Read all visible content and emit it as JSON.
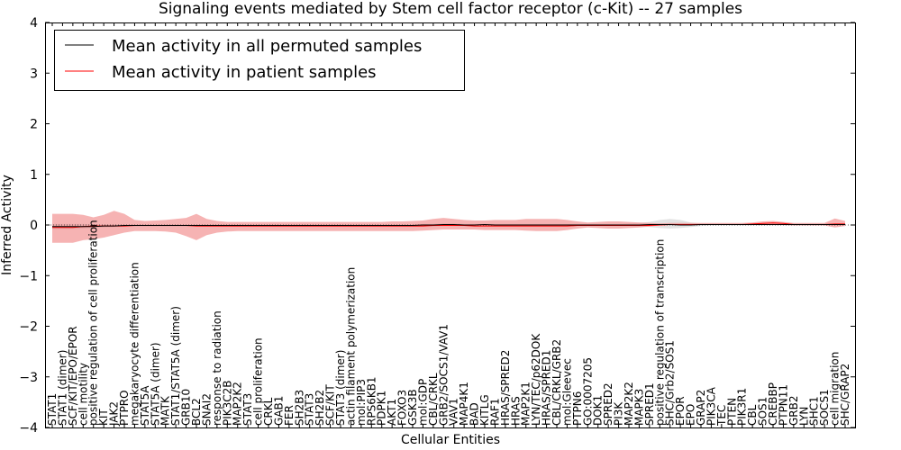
{
  "chart_data": {
    "type": "area",
    "title": "Signaling events mediated by Stem cell factor receptor (c-Kit) -- 27 samples",
    "xlabel": "Cellular Entities",
    "ylabel": "Inferred Activity",
    "ylim": [
      -4,
      4
    ],
    "yticks": [
      -4,
      -3,
      -2,
      -1,
      0,
      1,
      2,
      3,
      4
    ],
    "ytick_labels": [
      "−4",
      "−3",
      "−2",
      "−1",
      "0",
      "1",
      "2",
      "3",
      "4"
    ],
    "grid": false,
    "legend_position": "top-left",
    "categories": [
      "STAT1",
      "STAT1 (dimer)",
      "SCF/KIT/EPO/EPOR",
      "cell motility",
      "positive regulation of cell proliferation",
      "KIT",
      "JAK2",
      "PTPRO",
      "megakaryocyte differentiation",
      "STAT5A",
      "STAT5A (dimer)",
      "MATK",
      "STAT1/STAT5A (dimer)",
      "GRB10",
      "BCL2",
      "SNAI2",
      "response to radiation",
      "PIK3C2B",
      "MAP2K2",
      "STAT3",
      "cell proliferation",
      "CRKL",
      "GAB1",
      "FER",
      "SH2B3",
      "STAT3",
      "SH2B2",
      "SCF/KIT",
      "STAT3 (dimer)",
      "actin filament polymerization",
      "mol:PIP3",
      "RPS6KB1",
      "PDPK1",
      "AKT1",
      "FOXO3",
      "GSK3B",
      "mol:GDP",
      "CBL/CRKL",
      "GRB2/SOCS1/VAV1",
      "VAV1",
      "MAP4K1",
      "BAD",
      "KITLG",
      "RAF1",
      "HRAS/SPRED2",
      "HRAS",
      "MAP2K1",
      "LYN/TEC/p62DOK",
      "HRAS/SPRED1",
      "CBL/CRKL/GRB2",
      "mol:Gleevec",
      "PTPN6",
      "GO:0007205",
      "DOK1",
      "SPRED2",
      "PI3K",
      "MAP2K2",
      "MAPK3",
      "SPRED1",
      "positive regulation of transcription",
      "SHC/Grb2/SOS1",
      "EPOR",
      "EPO",
      "GRAP2",
      "PIK3CA",
      "TEC",
      "PTEN",
      "PIK3R1",
      "CBL",
      "SOS1",
      "CREBBP",
      "PTPN11",
      "GRB2",
      "LYN",
      "SHC1",
      "SOCS1",
      "cell migration",
      "SHC/GRAP2"
    ],
    "series": [
      {
        "name": "Mean activity in all permuted samples",
        "color": "#000000",
        "values": [
          -0.03,
          -0.03,
          -0.03,
          -0.03,
          -0.03,
          -0.02,
          -0.02,
          -0.01,
          -0.01,
          -0.01,
          -0.01,
          -0.01,
          -0.01,
          -0.01,
          -0.01,
          -0.01,
          -0.01,
          -0.01,
          -0.01,
          -0.01,
          -0.01,
          -0.01,
          -0.01,
          -0.01,
          -0.01,
          -0.01,
          -0.01,
          -0.01,
          -0.01,
          -0.01,
          -0.01,
          -0.01,
          -0.01,
          -0.01,
          -0.01,
          -0.01,
          0.0,
          0.0,
          0.01,
          0.01,
          0.0,
          0.0,
          0.01,
          0.0,
          0.0,
          0.0,
          0.0,
          0.0,
          0.0,
          0.0,
          0.0,
          0.0,
          0.0,
          0.0,
          0.0,
          0.0,
          0.0,
          0.0,
          0.01,
          0.01,
          0.01,
          0.0,
          0.0,
          0.01,
          0.01,
          0.01,
          0.01,
          0.01,
          0.01,
          0.01,
          0.01,
          0.01,
          0.01,
          0.01,
          0.01,
          0.01,
          0.01,
          0.01
        ],
        "band_lower": [
          -0.08,
          -0.08,
          -0.08,
          -0.07,
          -0.06,
          -0.05,
          -0.04,
          -0.03,
          -0.03,
          -0.03,
          -0.03,
          -0.03,
          -0.03,
          -0.03,
          -0.03,
          -0.03,
          -0.03,
          -0.03,
          -0.03,
          -0.03,
          -0.03,
          -0.03,
          -0.03,
          -0.03,
          -0.03,
          -0.03,
          -0.03,
          -0.03,
          -0.03,
          -0.03,
          -0.03,
          -0.03,
          -0.03,
          -0.03,
          -0.03,
          -0.03,
          -0.03,
          -0.03,
          -0.02,
          -0.02,
          -0.02,
          -0.02,
          -0.02,
          -0.02,
          -0.02,
          -0.02,
          -0.02,
          -0.02,
          -0.02,
          -0.02,
          -0.02,
          -0.02,
          -0.02,
          -0.02,
          -0.02,
          -0.02,
          -0.02,
          -0.03,
          -0.04,
          -0.06,
          -0.07,
          -0.06,
          -0.04,
          -0.02,
          -0.01,
          -0.01,
          -0.01,
          -0.01,
          -0.01,
          -0.01,
          -0.01,
          -0.01,
          -0.01,
          -0.01,
          -0.01,
          -0.01,
          -0.01,
          -0.01
        ],
        "band_upper": [
          0.02,
          0.02,
          0.02,
          0.02,
          0.01,
          0.01,
          0.01,
          0.01,
          0.01,
          0.01,
          0.01,
          0.01,
          0.01,
          0.01,
          0.01,
          0.01,
          0.01,
          0.01,
          0.01,
          0.01,
          0.01,
          0.01,
          0.01,
          0.01,
          0.01,
          0.01,
          0.01,
          0.01,
          0.01,
          0.01,
          0.01,
          0.01,
          0.01,
          0.01,
          0.01,
          0.01,
          0.02,
          0.02,
          0.03,
          0.03,
          0.02,
          0.02,
          0.02,
          0.02,
          0.02,
          0.02,
          0.02,
          0.02,
          0.02,
          0.02,
          0.02,
          0.02,
          0.02,
          0.02,
          0.02,
          0.02,
          0.03,
          0.04,
          0.06,
          0.1,
          0.12,
          0.1,
          0.05,
          0.03,
          0.03,
          0.03,
          0.03,
          0.03,
          0.03,
          0.03,
          0.03,
          0.03,
          0.03,
          0.03,
          0.03,
          0.03,
          0.03,
          0.03
        ]
      },
      {
        "name": "Mean activity in patient samples",
        "color": "#ff0000",
        "values": [
          -0.05,
          -0.05,
          -0.05,
          -0.03,
          -0.02,
          -0.02,
          -0.02,
          -0.02,
          -0.01,
          -0.01,
          -0.01,
          -0.01,
          -0.01,
          -0.01,
          -0.02,
          -0.02,
          -0.02,
          -0.02,
          -0.02,
          -0.02,
          -0.02,
          -0.02,
          -0.02,
          -0.02,
          -0.02,
          -0.02,
          -0.02,
          -0.02,
          -0.02,
          -0.02,
          -0.02,
          -0.02,
          -0.02,
          -0.02,
          -0.02,
          -0.02,
          -0.02,
          -0.01,
          -0.01,
          -0.01,
          -0.01,
          -0.02,
          -0.02,
          -0.02,
          -0.02,
          -0.02,
          -0.02,
          -0.02,
          -0.02,
          -0.02,
          -0.02,
          -0.01,
          -0.01,
          -0.01,
          -0.01,
          -0.01,
          -0.01,
          -0.01,
          -0.01,
          0.0,
          0.01,
          0.01,
          0.01,
          0.01,
          0.01,
          0.01,
          0.01,
          0.01,
          0.02,
          0.03,
          0.04,
          0.03,
          0.01,
          0.01,
          0.01,
          0.01,
          0.02,
          0.02
        ],
        "band_lower": [
          -0.35,
          -0.35,
          -0.35,
          -0.3,
          -0.28,
          -0.25,
          -0.2,
          -0.15,
          -0.12,
          -0.12,
          -0.12,
          -0.13,
          -0.15,
          -0.22,
          -0.3,
          -0.2,
          -0.15,
          -0.13,
          -0.12,
          -0.12,
          -0.12,
          -0.12,
          -0.12,
          -0.12,
          -0.12,
          -0.12,
          -0.12,
          -0.12,
          -0.12,
          -0.12,
          -0.12,
          -0.12,
          -0.12,
          -0.12,
          -0.12,
          -0.12,
          -0.11,
          -0.1,
          -0.09,
          -0.09,
          -0.09,
          -0.09,
          -0.1,
          -0.1,
          -0.1,
          -0.1,
          -0.11,
          -0.12,
          -0.12,
          -0.12,
          -0.1,
          -0.07,
          -0.05,
          -0.06,
          -0.07,
          -0.07,
          -0.06,
          -0.05,
          -0.03,
          -0.01,
          0.0,
          0.0,
          0.0,
          0.0,
          0.0,
          0.0,
          0.0,
          0.0,
          0.0,
          0.0,
          0.0,
          0.0,
          -0.01,
          -0.01,
          -0.01,
          -0.01,
          -0.05,
          -0.02
        ],
        "band_upper": [
          0.22,
          0.22,
          0.22,
          0.2,
          0.15,
          0.2,
          0.28,
          0.22,
          0.1,
          0.08,
          0.09,
          0.1,
          0.12,
          0.14,
          0.22,
          0.12,
          0.08,
          0.06,
          0.06,
          0.06,
          0.06,
          0.06,
          0.06,
          0.06,
          0.06,
          0.06,
          0.06,
          0.06,
          0.06,
          0.06,
          0.06,
          0.06,
          0.06,
          0.07,
          0.07,
          0.08,
          0.09,
          0.12,
          0.14,
          0.12,
          0.1,
          0.09,
          0.09,
          0.1,
          0.1,
          0.1,
          0.12,
          0.12,
          0.12,
          0.12,
          0.1,
          0.07,
          0.05,
          0.06,
          0.07,
          0.07,
          0.06,
          0.05,
          0.04,
          0.03,
          0.04,
          0.04,
          0.04,
          0.04,
          0.04,
          0.04,
          0.04,
          0.04,
          0.05,
          0.07,
          0.08,
          0.06,
          0.04,
          0.04,
          0.04,
          0.04,
          0.13,
          0.08
        ]
      }
    ],
    "legend": [
      "Mean activity in all permuted samples",
      "Mean activity in patient samples"
    ]
  }
}
